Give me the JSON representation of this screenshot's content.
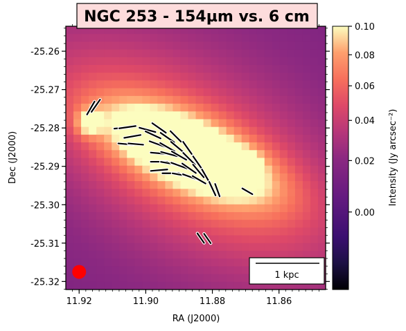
{
  "chart_data": {
    "type": "heatmap",
    "title": "NGC 253 - 154µm vs. 6 cm",
    "xlabel": "RA (J2000)",
    "ylabel": "Dec (J2000)",
    "colorbar_label": "Intensity (Jy arcsec⁻²)",
    "colormap": "magma",
    "xlim": [
      11.924,
      11.846
    ],
    "ylim": [
      -25.3221,
      -25.2535
    ],
    "x_ticks": [
      11.92,
      11.9,
      11.88,
      11.86
    ],
    "x_tick_labels": [
      "11.92",
      "11.90",
      "11.88",
      "11.86"
    ],
    "y_ticks": [
      -25.26,
      -25.27,
      -25.28,
      -25.29,
      -25.3,
      -25.31,
      -25.32
    ],
    "y_tick_labels": [
      "-25.26",
      "-25.27",
      "-25.28",
      "-25.29",
      "-25.30",
      "-25.31",
      "-25.32"
    ],
    "colorbar_ticks": [
      0.1,
      0.08,
      0.06,
      0.04,
      0.02,
      0.0
    ],
    "colorbar_tick_labels": [
      "0.10",
      "0.08",
      "0.06",
      "0.04",
      "0.02",
      "0.00"
    ],
    "colorbar_range": [
      -0.015,
      0.1
    ],
    "scalebar_label": "1 kpc",
    "beam": {
      "ra": 11.92,
      "dec": -25.3175,
      "color": "#ff0000"
    },
    "emission_components": [
      {
        "ra": 11.887,
        "dec": -25.2865,
        "sigma_ra": 0.0165,
        "sigma_dec": 0.0055,
        "amp": 0.11,
        "angle": -0.35
      },
      {
        "ra": 11.888,
        "dec": -25.287,
        "sigma_ra": 0.03,
        "sigma_dec": 0.012,
        "amp": 0.045,
        "angle": -0.45
      },
      {
        "ra": 11.886,
        "dec": -25.287,
        "sigma_ra": 0.045,
        "sigma_dec": 0.028,
        "amp": 0.022,
        "angle": -0.5
      },
      {
        "ra": 11.917,
        "dec": -25.2785,
        "sigma_ra": 0.0025,
        "sigma_dec": 0.0022,
        "amp": 0.06,
        "angle": 0
      },
      {
        "ra": 11.87,
        "dec": -25.2895,
        "sigma_ra": 0.003,
        "sigma_dec": 0.0022,
        "amp": 0.045,
        "angle": 0
      }
    ],
    "polarization_vectors": [
      {
        "ra": 11.9165,
        "dec": -25.2748,
        "angle": 60,
        "length": 0.0045,
        "width": 3
      },
      {
        "ra": 11.915,
        "dec": -25.2742,
        "angle": 55,
        "length": 0.0045,
        "width": 3
      },
      {
        "ra": 11.9072,
        "dec": -25.28,
        "angle": 5,
        "length": 0.0045,
        "width": 3
      },
      {
        "ra": 11.9055,
        "dec": -25.2798,
        "angle": 8,
        "length": 0.005,
        "width": 3
      },
      {
        "ra": 11.904,
        "dec": -25.2822,
        "angle": 10,
        "length": 0.005,
        "width": 3
      },
      {
        "ra": 11.906,
        "dec": -25.2842,
        "angle": -5,
        "length": 0.0045,
        "width": 3
      },
      {
        "ra": 11.903,
        "dec": -25.2842,
        "angle": -5,
        "length": 0.0045,
        "width": 3
      },
      {
        "ra": 11.8995,
        "dec": -25.2805,
        "angle": -15,
        "length": 0.005,
        "width": 3
      },
      {
        "ra": 11.8978,
        "dec": -25.2818,
        "angle": -25,
        "length": 0.005,
        "width": 3
      },
      {
        "ra": 11.896,
        "dec": -25.28,
        "angle": -35,
        "length": 0.005,
        "width": 3
      },
      {
        "ra": 11.8935,
        "dec": -25.2825,
        "angle": -35,
        "length": 0.005,
        "width": 3
      },
      {
        "ra": 11.891,
        "dec": -25.2822,
        "angle": -45,
        "length": 0.0045,
        "width": 3
      },
      {
        "ra": 11.8965,
        "dec": -25.2842,
        "angle": -20,
        "length": 0.005,
        "width": 3
      },
      {
        "ra": 11.8935,
        "dec": -25.285,
        "angle": -30,
        "length": 0.005,
        "width": 3
      },
      {
        "ra": 11.8905,
        "dec": -25.285,
        "angle": -40,
        "length": 0.005,
        "width": 3
      },
      {
        "ra": 11.8875,
        "dec": -25.2852,
        "angle": -55,
        "length": 0.0045,
        "width": 3
      },
      {
        "ra": 11.896,
        "dec": -25.2866,
        "angle": -5,
        "length": 0.005,
        "width": 3
      },
      {
        "ra": 11.893,
        "dec": -25.2868,
        "angle": -15,
        "length": 0.005,
        "width": 3
      },
      {
        "ra": 11.89,
        "dec": -25.2872,
        "angle": -30,
        "length": 0.005,
        "width": 3
      },
      {
        "ra": 11.887,
        "dec": -25.288,
        "angle": -45,
        "length": 0.005,
        "width": 3
      },
      {
        "ra": 11.8845,
        "dec": -25.289,
        "angle": -55,
        "length": 0.0045,
        "width": 3
      },
      {
        "ra": 11.896,
        "dec": -25.2888,
        "angle": 0,
        "length": 0.005,
        "width": 3
      },
      {
        "ra": 11.893,
        "dec": -25.2892,
        "angle": -10,
        "length": 0.005,
        "width": 3
      },
      {
        "ra": 11.89,
        "dec": -25.2898,
        "angle": -20,
        "length": 0.005,
        "width": 3
      },
      {
        "ra": 11.887,
        "dec": -25.2905,
        "angle": -35,
        "length": 0.005,
        "width": 3
      },
      {
        "ra": 11.8842,
        "dec": -25.2912,
        "angle": -50,
        "length": 0.005,
        "width": 3
      },
      {
        "ra": 11.882,
        "dec": -25.2925,
        "angle": -60,
        "length": 0.0045,
        "width": 3
      },
      {
        "ra": 11.896,
        "dec": -25.291,
        "angle": 5,
        "length": 0.005,
        "width": 3
      },
      {
        "ra": 11.8925,
        "dec": -25.2918,
        "angle": 0,
        "length": 0.005,
        "width": 3
      },
      {
        "ra": 11.8895,
        "dec": -25.2922,
        "angle": -10,
        "length": 0.005,
        "width": 3
      },
      {
        "ra": 11.8865,
        "dec": -25.2928,
        "angle": -20,
        "length": 0.005,
        "width": 3
      },
      {
        "ra": 11.884,
        "dec": -25.2935,
        "angle": -30,
        "length": 0.0045,
        "width": 3
      },
      {
        "ra": 11.88,
        "dec": -25.2958,
        "angle": -65,
        "length": 0.0045,
        "width": 3
      },
      {
        "ra": 11.8785,
        "dec": -25.2962,
        "angle": -70,
        "length": 0.004,
        "width": 3
      },
      {
        "ra": 11.8695,
        "dec": -25.2965,
        "angle": -30,
        "length": 0.0035,
        "width": 3
      },
      {
        "ra": 11.8835,
        "dec": -25.3087,
        "angle": -55,
        "length": 0.0035,
        "width": 3
      },
      {
        "ra": 11.8815,
        "dec": -25.3088,
        "angle": -55,
        "length": 0.0035,
        "width": 3
      }
    ]
  }
}
